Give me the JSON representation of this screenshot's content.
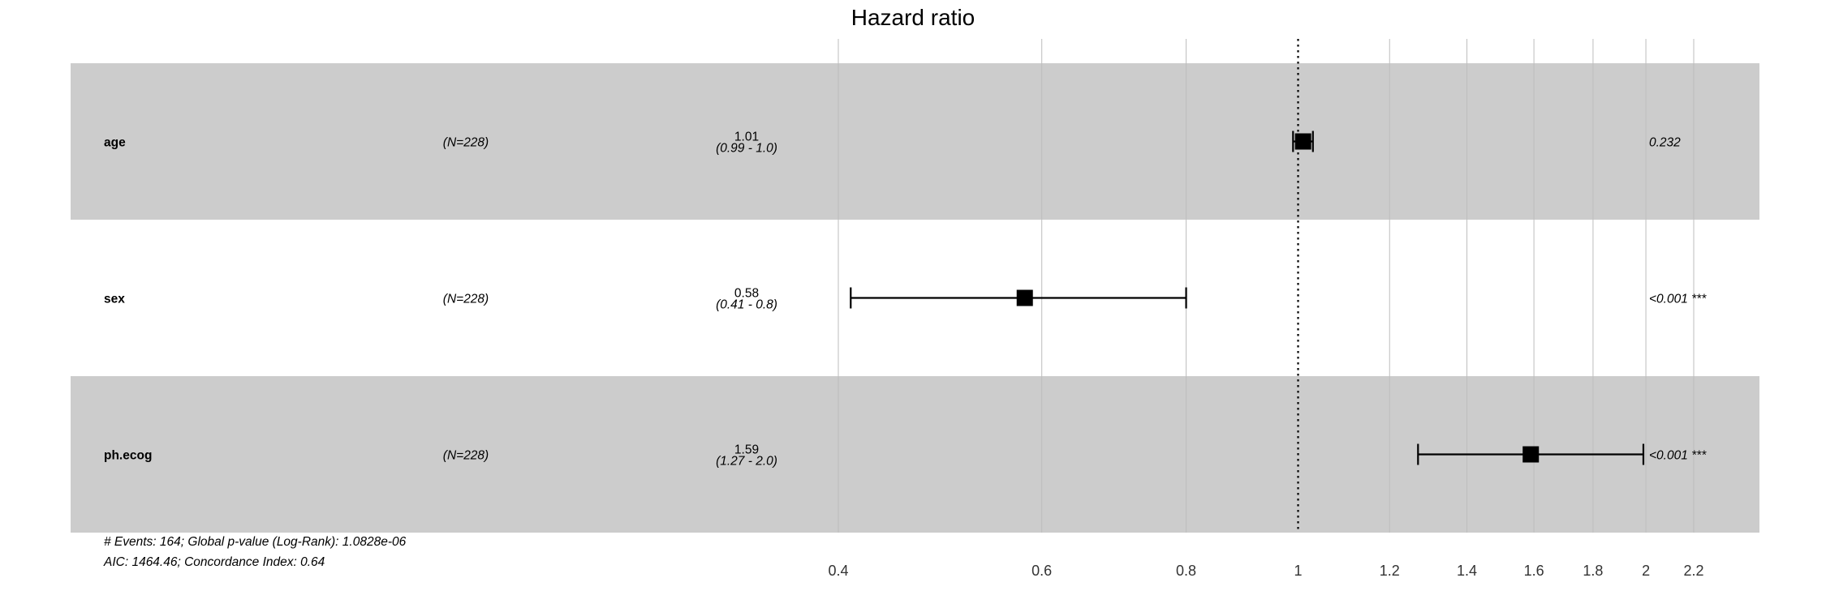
{
  "chart_data": {
    "type": "forest",
    "title": "Hazard ratio",
    "x_scale": "log",
    "xlim": [
      0.4,
      2.35
    ],
    "x_ticks": [
      0.4,
      0.6,
      0.8,
      1,
      1.2,
      1.4,
      1.6,
      1.8,
      2,
      2.2
    ],
    "x_tick_labels": [
      "0.4",
      "0.6",
      "0.8",
      "1",
      "1.2",
      "1.4",
      "1.6",
      "1.8",
      "2",
      "2.2"
    ],
    "reference_line": 1,
    "rows": [
      {
        "variable": "age",
        "n": "(N=228)",
        "estimate_label": "1.01",
        "ci_label": "(0.99 - 1.0)",
        "hr": 1.01,
        "ci_low": 0.99,
        "ci_high": 1.03,
        "p_label": "0.232",
        "shaded": true
      },
      {
        "variable": "sex",
        "n": "(N=228)",
        "estimate_label": "0.58",
        "ci_label": "(0.41 - 0.8)",
        "hr": 0.58,
        "ci_low": 0.41,
        "ci_high": 0.8,
        "p_label": "<0.001 ***",
        "shaded": false
      },
      {
        "variable": "ph.ecog",
        "n": "(N=228)",
        "estimate_label": "1.59",
        "ci_label": "(1.27 - 2.0)",
        "hr": 1.59,
        "ci_low": 1.27,
        "ci_high": 1.99,
        "p_label": "<0.001 ***",
        "shaded": true
      }
    ],
    "footer_lines": [
      "# Events: 164; Global p-value (Log-Rank): 1.0828e-06",
      "AIC: 1464.46; Concordance Index: 0.64"
    ],
    "colors": {
      "shaded_row": "#cccccc",
      "gridline": "#bdbdbd",
      "marker": "#000000"
    }
  }
}
